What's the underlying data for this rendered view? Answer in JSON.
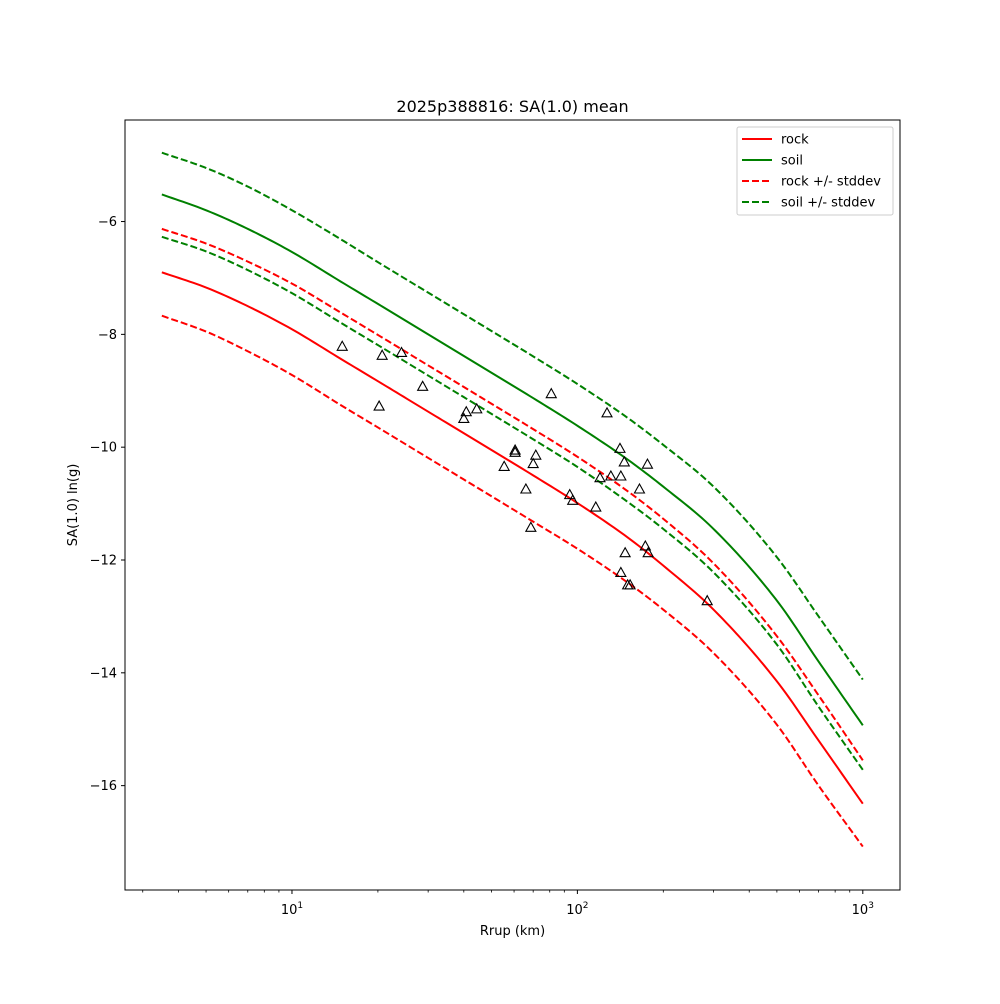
{
  "chart_data": {
    "type": "line",
    "title": "2025p388816: SA(1.0) mean",
    "xlabel": "Rrup (km)",
    "ylabel": "SA(1.0) ln(g)",
    "xscale": "log",
    "xlim": [
      2.6,
      1350
    ],
    "ylim": [
      -17.85,
      -4.2
    ],
    "xticks": [
      {
        "value": 10,
        "base": "10",
        "exp": "1"
      },
      {
        "value": 100,
        "base": "10",
        "exp": "2"
      },
      {
        "value": 1000,
        "base": "10",
        "exp": "3"
      }
    ],
    "yticks": [
      -16,
      -14,
      -12,
      -10,
      -8,
      -6
    ],
    "grid": false,
    "legend_position": "top-right",
    "x": [
      3.5,
      5,
      7,
      10,
      15,
      20,
      30,
      50,
      70,
      100,
      150,
      200,
      300,
      500,
      700,
      1000
    ],
    "series": [
      {
        "name": "rock",
        "style": "solid",
        "color": "#ff0000",
        "values": [
          -6.9,
          -7.17,
          -7.5,
          -7.91,
          -8.45,
          -8.83,
          -9.37,
          -10.05,
          -10.5,
          -10.99,
          -11.6,
          -12.1,
          -12.88,
          -14.15,
          -15.2,
          -16.32
        ]
      },
      {
        "name": "soil",
        "style": "solid",
        "color": "#008000",
        "values": [
          -5.52,
          -5.8,
          -6.13,
          -6.54,
          -7.08,
          -7.46,
          -8.0,
          -8.68,
          -9.13,
          -9.62,
          -10.22,
          -10.7,
          -11.45,
          -12.72,
          -13.8,
          -14.93
        ]
      },
      {
        "name": "rock +/- stddev",
        "style": "dashed",
        "color": "#ff0000",
        "values": [
          -7.67,
          -7.95,
          -8.3,
          -8.72,
          -9.27,
          -9.65,
          -10.19,
          -10.87,
          -11.32,
          -11.8,
          -12.4,
          -12.88,
          -13.65,
          -14.92,
          -16.0,
          -17.08
        ]
      },
      {
        "name": "",
        "style": "dashed",
        "color": "#ff0000",
        "values": [
          -6.13,
          -6.39,
          -6.71,
          -7.1,
          -7.63,
          -8.01,
          -8.55,
          -9.23,
          -9.68,
          -10.17,
          -10.78,
          -11.27,
          -12.06,
          -13.35,
          -14.4,
          -15.55
        ]
      },
      {
        "name": "soil +/- stddev",
        "style": "dashed",
        "color": "#008000",
        "values": [
          -4.78,
          -5.05,
          -5.38,
          -5.8,
          -6.33,
          -6.72,
          -7.26,
          -7.94,
          -8.39,
          -8.88,
          -9.48,
          -9.96,
          -10.7,
          -11.95,
          -13.0,
          -14.12
        ]
      },
      {
        "name": "",
        "style": "dashed",
        "color": "#008000",
        "values": [
          -6.27,
          -6.53,
          -6.86,
          -7.27,
          -7.81,
          -8.19,
          -8.73,
          -9.41,
          -9.86,
          -10.35,
          -10.97,
          -11.45,
          -12.22,
          -13.5,
          -14.6,
          -15.72
        ]
      }
    ],
    "points": {
      "marker": "triangle-open",
      "color": "#000000",
      "data": [
        [
          15.0,
          -8.22
        ],
        [
          20.2,
          -9.28
        ],
        [
          20.7,
          -8.38
        ],
        [
          24.2,
          -8.33
        ],
        [
          28.7,
          -8.93
        ],
        [
          40.0,
          -9.5
        ],
        [
          40.8,
          -9.38
        ],
        [
          44.4,
          -9.33
        ],
        [
          55.4,
          -10.35
        ],
        [
          60.5,
          -10.06
        ],
        [
          60.5,
          -10.1
        ],
        [
          66.0,
          -10.75
        ],
        [
          68.7,
          -11.43
        ],
        [
          70.0,
          -10.3
        ],
        [
          71.5,
          -10.15
        ],
        [
          81.0,
          -9.06
        ],
        [
          94.0,
          -10.85
        ],
        [
          96.3,
          -10.95
        ],
        [
          116.0,
          -11.07
        ],
        [
          120.0,
          -10.55
        ],
        [
          127.0,
          -9.4
        ],
        [
          131.0,
          -10.52
        ],
        [
          141.0,
          -10.03
        ],
        [
          142.0,
          -10.52
        ],
        [
          142.0,
          -12.23
        ],
        [
          146.0,
          -10.27
        ],
        [
          147.0,
          -11.88
        ],
        [
          150.0,
          -12.45
        ],
        [
          153.0,
          -12.45
        ],
        [
          165.0,
          -10.75
        ],
        [
          173.0,
          -11.76
        ],
        [
          176.0,
          -10.31
        ],
        [
          177.0,
          -11.88
        ],
        [
          285.0,
          -12.73
        ]
      ]
    }
  }
}
